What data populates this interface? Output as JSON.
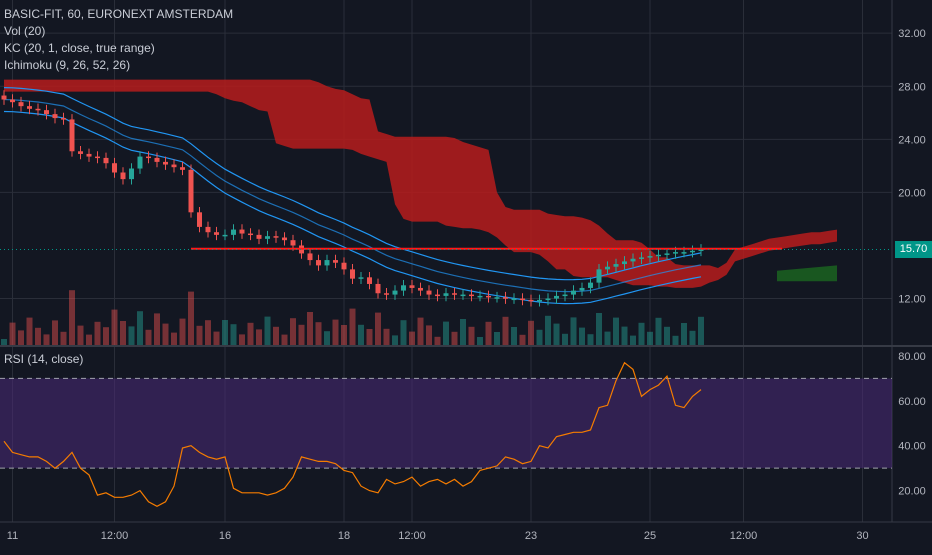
{
  "legend": {
    "symbol": "BASIC-FIT, 60, EURONEXT AMSTERDAM",
    "vol": "Vol (20)",
    "kc": "KC (20, 1, close, true range)",
    "ichimoku": "Ichimoku (9, 26, 52, 26)",
    "rsi": "RSI (14, close)"
  },
  "colors": {
    "background": "#131722",
    "grid": "#2a2e39",
    "up": "#26a69a",
    "down": "#ef5350",
    "cloud_bear": "#b71c1c",
    "cloud_bull": "#1b5e20",
    "kc": "#2196f3",
    "rsi_line": "#f57c00",
    "rsi_band": "#4a2a78",
    "hline": "#ff1a1a",
    "price_tag": "#009688"
  },
  "current_price": {
    "value": 15.7,
    "label": "15.70"
  },
  "price_axis": {
    "ticks": [
      "32.00",
      "28.00",
      "24.00",
      "20.00",
      "12.00"
    ],
    "tick_values": [
      32,
      28,
      24,
      20,
      12
    ],
    "range": [
      8.5,
      34.5
    ]
  },
  "rsi_axis": {
    "ticks": [
      "80.00",
      "60.00",
      "40.00",
      "20.00"
    ],
    "tick_values": [
      80,
      60,
      40,
      20
    ],
    "range": [
      6,
      84
    ],
    "upper": 70,
    "lower": 30
  },
  "time_axis": {
    "labels": [
      "11",
      "12:00",
      "16",
      "18",
      "12:00",
      "23",
      "25",
      "12:00",
      "30"
    ],
    "bar_index": [
      1,
      13,
      26,
      40,
      48,
      62,
      76,
      87,
      101
    ]
  },
  "chart_data": [
    {
      "type": "candlestick",
      "title": "BASIC-FIT, 60, EURONEXT AMSTERDAM",
      "close": [
        27.0,
        26.8,
        26.5,
        26.3,
        26.2,
        25.9,
        25.6,
        25.5,
        23.1,
        22.9,
        22.7,
        22.6,
        22.2,
        21.5,
        21.0,
        21.8,
        22.7,
        22.6,
        22.3,
        22.1,
        21.9,
        21.7,
        18.5,
        17.4,
        17.0,
        16.8,
        16.8,
        17.2,
        16.9,
        16.8,
        16.5,
        16.7,
        16.6,
        16.4,
        16.0,
        15.4,
        14.9,
        14.5,
        14.9,
        14.7,
        14.2,
        13.5,
        13.6,
        13.1,
        12.4,
        12.3,
        12.6,
        13.0,
        12.8,
        12.6,
        12.3,
        12.2,
        12.4,
        12.3,
        12.3,
        12.2,
        12.2,
        12.1,
        12.1,
        12.0,
        12.0,
        11.9,
        11.8,
        11.9,
        12.0,
        12.2,
        12.3,
        12.6,
        12.8,
        13.2,
        14.2,
        14.4,
        14.6,
        14.8,
        15.0,
        15.1,
        15.2,
        15.3,
        15.4,
        15.5,
        15.5,
        15.6,
        15.7
      ],
      "x_labels": [
        "11",
        "12:00",
        "16",
        "18",
        "12:00",
        "23",
        "25",
        "12:00",
        "30"
      ],
      "y_range": [
        8.5,
        34.5
      ]
    },
    {
      "type": "line",
      "title": "RSI (14, close)",
      "values": [
        42,
        37,
        36,
        35,
        35,
        33,
        30,
        33,
        37,
        30,
        27,
        18,
        19,
        17,
        17,
        18,
        20,
        15,
        13,
        15,
        22,
        39,
        40,
        37,
        35,
        34,
        35,
        21,
        19,
        19,
        19,
        18,
        19,
        21,
        26,
        35,
        34,
        33,
        33,
        32,
        29,
        28,
        22,
        20,
        19,
        25,
        23,
        24,
        26,
        22,
        24,
        25,
        23,
        25,
        22,
        24,
        29,
        30,
        31,
        35,
        34,
        32,
        33,
        40,
        39,
        44,
        45,
        46,
        46,
        47,
        57,
        58,
        69,
        77,
        74,
        62,
        65,
        67,
        71,
        58,
        57,
        62,
        65
      ],
      "y_range": [
        6,
        84
      ],
      "overbought": 70,
      "oversold": 30
    }
  ]
}
